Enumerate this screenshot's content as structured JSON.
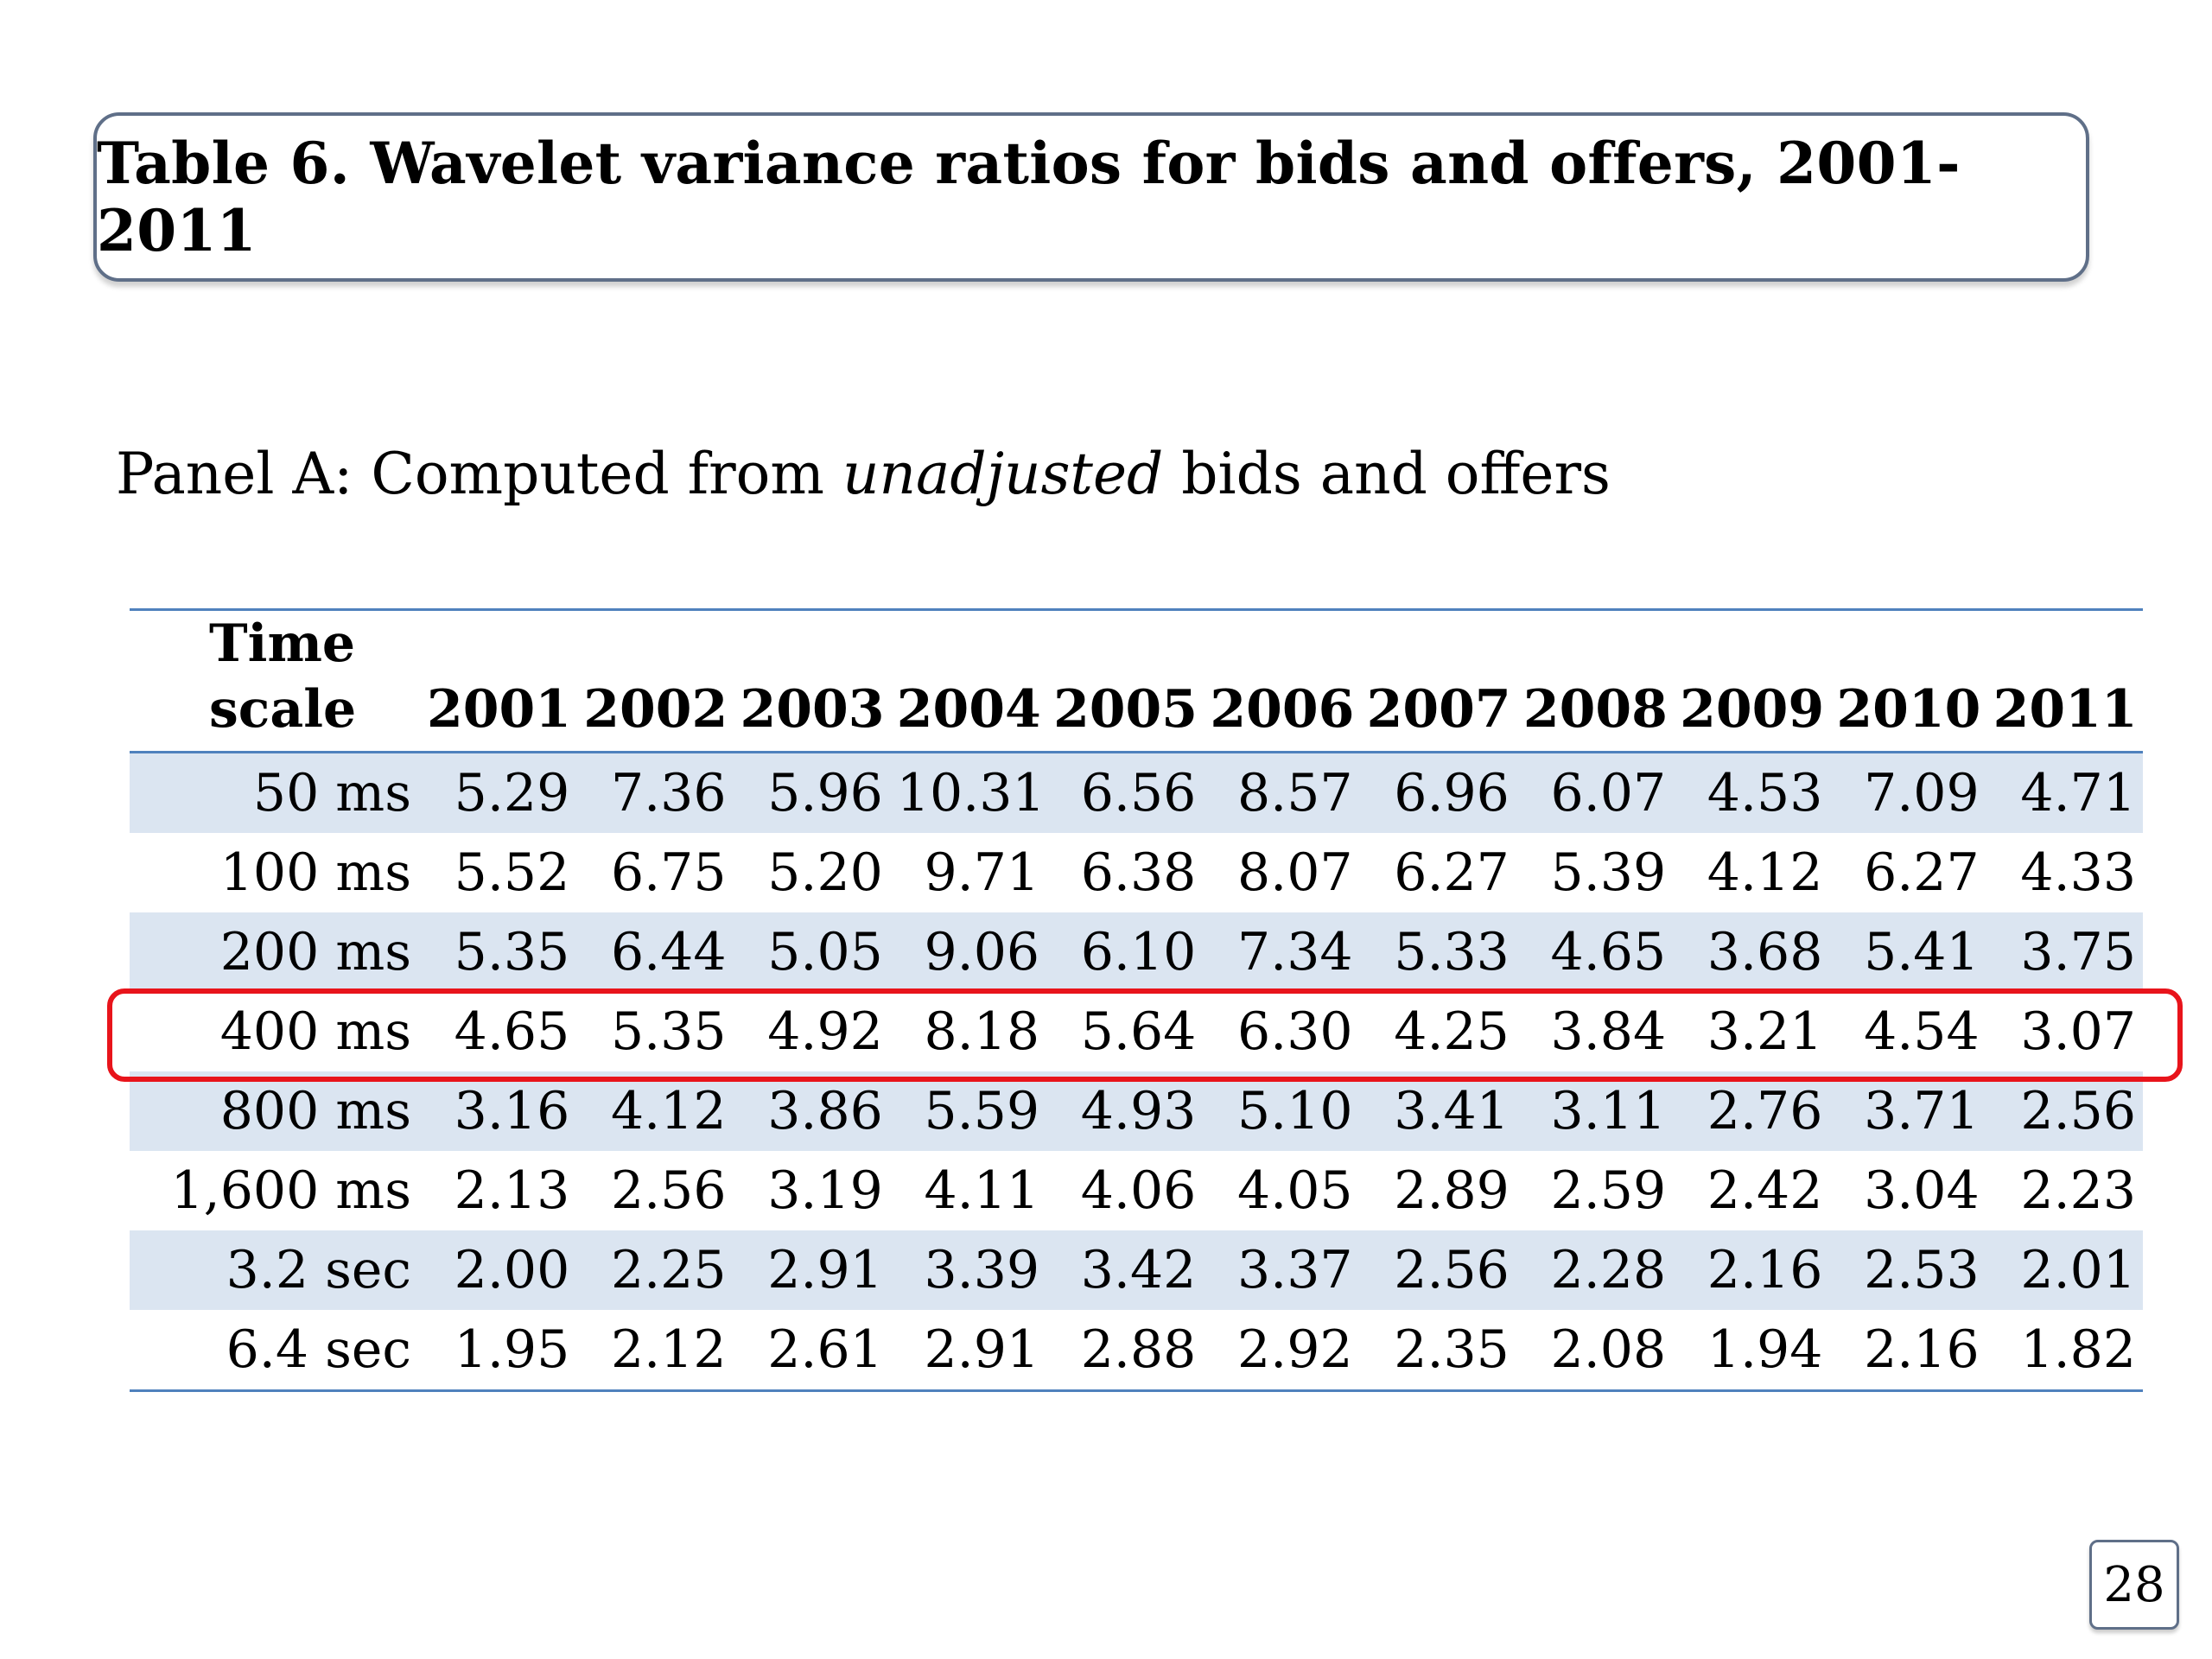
{
  "title": "Table 6. Wavelet variance ratios for bids and offers, 2001-2011",
  "panel": {
    "prefix": "Panel A: Computed from ",
    "emphasis": "unadjusted",
    "suffix": " bids and offers"
  },
  "table": {
    "scale_header_line1": "Time",
    "scale_header_line2": "scale",
    "years": [
      "2001",
      "2002",
      "2003",
      "2004",
      "2005",
      "2006",
      "2007",
      "2008",
      "2009",
      "2010",
      "2011"
    ],
    "rows": [
      {
        "scale": "50 ms",
        "values": [
          "5.29",
          "7.36",
          "5.96",
          "10.31",
          "6.56",
          "8.57",
          "6.96",
          "6.07",
          "4.53",
          "7.09",
          "4.71"
        ]
      },
      {
        "scale": "100 ms",
        "values": [
          "5.52",
          "6.75",
          "5.20",
          "9.71",
          "6.38",
          "8.07",
          "6.27",
          "5.39",
          "4.12",
          "6.27",
          "4.33"
        ]
      },
      {
        "scale": "200 ms",
        "values": [
          "5.35",
          "6.44",
          "5.05",
          "9.06",
          "6.10",
          "7.34",
          "5.33",
          "4.65",
          "3.68",
          "5.41",
          "3.75"
        ]
      },
      {
        "scale": "400 ms",
        "values": [
          "4.65",
          "5.35",
          "4.92",
          "8.18",
          "5.64",
          "6.30",
          "4.25",
          "3.84",
          "3.21",
          "4.54",
          "3.07"
        ]
      },
      {
        "scale": "800 ms",
        "values": [
          "3.16",
          "4.12",
          "3.86",
          "5.59",
          "4.93",
          "5.10",
          "3.41",
          "3.11",
          "2.76",
          "3.71",
          "2.56"
        ]
      },
      {
        "scale": "1,600 ms",
        "values": [
          "2.13",
          "2.56",
          "3.19",
          "4.11",
          "4.06",
          "4.05",
          "2.89",
          "2.59",
          "2.42",
          "3.04",
          "2.23"
        ]
      },
      {
        "scale": "3.2 sec",
        "values": [
          "2.00",
          "2.25",
          "2.91",
          "3.39",
          "3.42",
          "3.37",
          "2.56",
          "2.28",
          "2.16",
          "2.53",
          "2.01"
        ]
      },
      {
        "scale": "6.4 sec",
        "values": [
          "1.95",
          "2.12",
          "2.61",
          "2.91",
          "2.88",
          "2.92",
          "2.35",
          "2.08",
          "1.94",
          "2.16",
          "1.82"
        ]
      }
    ],
    "highlighted_row": "400 ms",
    "colors": {
      "rule": "#4f81bd",
      "shade": "#dbe5f1",
      "highlight": "#e8141b"
    }
  },
  "page_number": "28"
}
